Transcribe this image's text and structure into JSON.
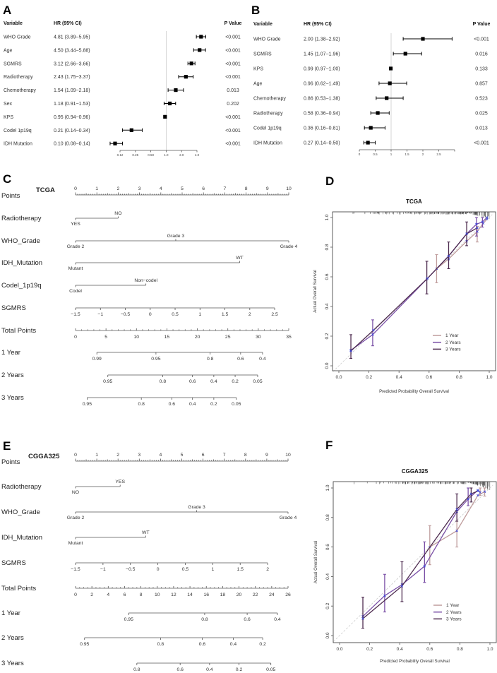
{
  "panels": {
    "A": "A",
    "B": "B",
    "C": "C",
    "D": "D",
    "E": "E",
    "F": "F"
  },
  "chart_data": [
    {
      "id": "A",
      "type": "forest",
      "scale": "log",
      "headers": {
        "variable": "Variable",
        "hr": "HR (95% CI)",
        "p": "P Value"
      },
      "ticks": [
        {
          "v": 0.125,
          "label": "0.12"
        },
        {
          "v": 0.25,
          "label": "0.25"
        },
        {
          "v": 0.5,
          "label": "0.50"
        },
        {
          "v": 1,
          "label": "1.0"
        },
        {
          "v": 2,
          "label": "2.0"
        },
        {
          "v": 4,
          "label": "4.0"
        }
      ],
      "rows": [
        {
          "variable": "WHO Grade",
          "hr": 4.81,
          "lo": 3.89,
          "hi": 5.95,
          "text": "4.81 (3.89−5.95)",
          "p": "<0.001"
        },
        {
          "variable": "Age",
          "hr": 4.5,
          "lo": 3.44,
          "hi": 5.88,
          "text": "4.50 (3.44−5.88)",
          "p": "<0.001"
        },
        {
          "variable": "SGMRS",
          "hr": 3.12,
          "lo": 2.66,
          "hi": 3.66,
          "text": "3.12 (2.66−3.66)",
          "p": "<0.001"
        },
        {
          "variable": "Radiotherapy",
          "hr": 2.43,
          "lo": 1.75,
          "hi": 3.37,
          "text": "2.43 (1.75−3.37)",
          "p": "<0.001"
        },
        {
          "variable": "Chemotherapy",
          "hr": 1.54,
          "lo": 1.09,
          "hi": 2.18,
          "text": "1.54 (1.09−2.18)",
          "p": "0.013"
        },
        {
          "variable": "Sex",
          "hr": 1.18,
          "lo": 0.91,
          "hi": 1.53,
          "text": "1.18 (0.91−1.53)",
          "p": "0.202"
        },
        {
          "variable": "KPS",
          "hr": 0.95,
          "lo": 0.94,
          "hi": 0.96,
          "text": "0.95 (0.94−0.96)",
          "p": "<0.001"
        },
        {
          "variable": "Codel 1p19q",
          "hr": 0.21,
          "lo": 0.14,
          "hi": 0.34,
          "text": "0.21 (0.14−0.34)",
          "p": "<0.001"
        },
        {
          "variable": "IDH Mutation",
          "hr": 0.1,
          "lo": 0.08,
          "hi": 0.14,
          "text": "0.10 (0.08−0.14)",
          "p": "<0.001"
        }
      ]
    },
    {
      "id": "B",
      "type": "forest",
      "scale": "linear",
      "xlim": [
        0,
        3
      ],
      "headers": {
        "variable": "Variable",
        "hr": "HR (95% CI)",
        "p": "P Value"
      },
      "ticks": [
        {
          "v": 0,
          "label": "0"
        },
        {
          "v": 0.5,
          "label": "0.5"
        },
        {
          "v": 1,
          "label": "1"
        },
        {
          "v": 1.5,
          "label": "1.5"
        },
        {
          "v": 2,
          "label": "2"
        },
        {
          "v": 2.5,
          "label": "2.5"
        },
        {
          "v": 3,
          "label": ""
        }
      ],
      "rows": [
        {
          "variable": "WHO Grade",
          "hr": 2.0,
          "lo": 1.38,
          "hi": 2.92,
          "text": "2.00 (1.38−2.92)",
          "p": "<0.001"
        },
        {
          "variable": "SGMRS",
          "hr": 1.45,
          "lo": 1.07,
          "hi": 1.96,
          "text": "1.45 (1.07−1.96)",
          "p": "0.016"
        },
        {
          "variable": "KPS",
          "hr": 0.99,
          "lo": 0.97,
          "hi": 1.0,
          "text": "0.99 (0.97−1.00)",
          "p": "0.133"
        },
        {
          "variable": "Age",
          "hr": 0.96,
          "lo": 0.62,
          "hi": 1.49,
          "text": "0.96 (0.62−1.49)",
          "p": "0.857"
        },
        {
          "variable": "Chemotherapy",
          "hr": 0.86,
          "lo": 0.53,
          "hi": 1.38,
          "text": "0.86 (0.53−1.38)",
          "p": "0.523"
        },
        {
          "variable": "Radiotherapy",
          "hr": 0.58,
          "lo": 0.36,
          "hi": 0.94,
          "text": "0.58 (0.36−0.94)",
          "p": "0.025"
        },
        {
          "variable": "Codel 1p19q",
          "hr": 0.36,
          "lo": 0.16,
          "hi": 0.81,
          "text": "0.36 (0.16−0.81)",
          "p": "0.013"
        },
        {
          "variable": "IDH Mutation",
          "hr": 0.27,
          "lo": 0.14,
          "hi": 0.5,
          "text": "0.27 (0.14−0.50)",
          "p": "<0.001"
        }
      ]
    },
    {
      "id": "C",
      "type": "nomogram",
      "title": "TCGA",
      "total_max": 35,
      "rows": [
        {
          "label": "Points",
          "kind": "points",
          "ticks": [
            0,
            1,
            2,
            3,
            4,
            5,
            6,
            7,
            8,
            9,
            10
          ]
        },
        {
          "label": "Radiotherapy",
          "kind": "categorical",
          "levels": [
            {
              "name": "YES",
              "points": 0
            },
            {
              "name": "NO",
              "points": 2.0
            }
          ]
        },
        {
          "label": "WHO_Grade",
          "kind": "categorical",
          "levels": [
            {
              "name": "Grade 2",
              "points": 0
            },
            {
              "name": "Grade 3",
              "points": 4.7
            },
            {
              "name": "Grade 4",
              "points": 10
            }
          ]
        },
        {
          "label": "IDH_Mutation",
          "kind": "categorical",
          "levels": [
            {
              "name": "Mutant",
              "points": 0
            },
            {
              "name": "WT",
              "points": 7.7
            }
          ]
        },
        {
          "label": "Codel_1p19q",
          "kind": "categorical",
          "levels": [
            {
              "name": "Codel",
              "points": 0
            },
            {
              "name": "Non−codel",
              "points": 3.3
            }
          ]
        },
        {
          "label": "SGMRS",
          "kind": "continuous",
          "range": [
            -1.5,
            2.5
          ],
          "points_range": [
            0,
            9.34
          ],
          "ticks": [
            {
              "v": -1.5,
              "label": "−1.5"
            },
            {
              "v": -1,
              "label": "−1"
            },
            {
              "v": -0.5,
              "label": "−0.5"
            },
            {
              "v": 0,
              "label": "0"
            },
            {
              "v": 0.5,
              "label": "0.5"
            },
            {
              "v": 1,
              "label": "1"
            },
            {
              "v": 1.5,
              "label": "1.5"
            },
            {
              "v": 2,
              "label": "2"
            },
            {
              "v": 2.5,
              "label": "2.5"
            }
          ]
        },
        {
          "label": "Total Points",
          "kind": "total",
          "step": 5,
          "minor": 1
        },
        {
          "label": "1 Year",
          "kind": "prob",
          "ticks": [
            {
              "label": "0.99",
              "total": 3.5
            },
            {
              "label": "0.95",
              "total": 13.2
            },
            {
              "label": "0.8",
              "total": 22.1
            },
            {
              "label": "0.6",
              "total": 27.1
            },
            {
              "label": "0.4",
              "total": 30.7
            }
          ]
        },
        {
          "label": "2 Years",
          "kind": "prob",
          "ticks": [
            {
              "label": "0.95",
              "total": 5.3
            },
            {
              "label": "0.8",
              "total": 14.3
            },
            {
              "label": "0.6",
              "total": 19.2
            },
            {
              "label": "0.4",
              "total": 22.7
            },
            {
              "label": "0.2",
              "total": 26.2
            },
            {
              "label": "0.05",
              "total": 29.9
            }
          ]
        },
        {
          "label": "3 Years",
          "kind": "prob",
          "ticks": [
            {
              "label": "0.95",
              "total": 1.9
            },
            {
              "label": "0.8",
              "total": 10.8
            },
            {
              "label": "0.6",
              "total": 15.8
            },
            {
              "label": "0.4",
              "total": 19.2
            },
            {
              "label": "0.2",
              "total": 22.7
            },
            {
              "label": "0.05",
              "total": 26.4
            }
          ]
        }
      ]
    },
    {
      "id": "D",
      "type": "line",
      "title": "TCGA",
      "xlabel": "Predicted Probability Overall Survival",
      "ylabel": "Actual Overall Survival",
      "xlim": [
        0,
        1
      ],
      "ylim": [
        0,
        1
      ],
      "xticks": [
        "0.0",
        "0.2",
        "0.4",
        "0.6",
        "0.8",
        "1.0"
      ],
      "yticks": [
        "0.0",
        "0.2",
        "0.4",
        "0.6",
        "0.8",
        "1.0"
      ],
      "legend_position": "bottom-right",
      "series": [
        {
          "name": "1 Year",
          "color": "#bf9c9c",
          "x": [
            0.65,
            0.73,
            0.85,
            0.92,
            0.96,
            0.985
          ],
          "y": [
            0.655,
            0.72,
            0.84,
            0.905,
            0.96,
            0.99
          ],
          "errors": [
            {
              "x": 0.65,
              "lo": 0.56,
              "hi": 0.75
            },
            {
              "x": 0.92,
              "lo": 0.835,
              "hi": 0.94
            }
          ]
        },
        {
          "name": "2 Years",
          "color": "#7a4fa6",
          "x": [
            0.08,
            0.225,
            0.585,
            0.73,
            0.85,
            0.915,
            0.955,
            0.985
          ],
          "y": [
            0.105,
            0.21,
            0.585,
            0.74,
            0.89,
            0.955,
            0.97,
            1.0
          ],
          "errors": [
            {
              "x": 0.225,
              "lo": 0.135,
              "hi": 0.31
            },
            {
              "x": 0.915,
              "lo": 0.875,
              "hi": 1.0
            },
            {
              "x": 0.955,
              "lo": 0.935,
              "hi": 1.0
            }
          ]
        },
        {
          "name": "3 Years",
          "color": "#4c2a4e",
          "x": [
            0.08,
            0.23,
            0.59,
            0.73,
            0.85,
            0.92
          ],
          "y": [
            0.1,
            0.24,
            0.59,
            0.74,
            0.89,
            0.93
          ],
          "errors": [
            {
              "x": 0.08,
              "lo": 0.05,
              "hi": 0.21
            },
            {
              "x": 0.585,
              "lo": 0.485,
              "hi": 0.705
            },
            {
              "x": 0.73,
              "lo": 0.655,
              "hi": 0.835
            },
            {
              "x": 0.85,
              "lo": 0.81,
              "hi": 0.97
            }
          ]
        }
      ]
    },
    {
      "id": "E",
      "type": "nomogram",
      "title": "CGGA325",
      "total_max": 26,
      "rows": [
        {
          "label": "Points",
          "kind": "points",
          "ticks": [
            0,
            1,
            2,
            3,
            4,
            5,
            6,
            7,
            8,
            9,
            10
          ]
        },
        {
          "label": "Radiotherapy",
          "kind": "categorical",
          "levels": [
            {
              "name": "NO",
              "points": 0
            },
            {
              "name": "YES",
              "points": 2.1
            }
          ]
        },
        {
          "label": "WHO_Grade",
          "kind": "categorical",
          "levels": [
            {
              "name": "Grade 2",
              "points": 0
            },
            {
              "name": "Grade 3",
              "points": 5.7
            },
            {
              "name": "Grade 4",
              "points": 10
            }
          ]
        },
        {
          "label": "IDH_Mutation",
          "kind": "categorical",
          "levels": [
            {
              "name": "Mutant",
              "points": 0
            },
            {
              "name": "WT",
              "points": 3.3
            }
          ]
        },
        {
          "label": "SGMRS",
          "kind": "continuous",
          "range": [
            -1.5,
            2
          ],
          "points_range": [
            0,
            9.04
          ],
          "ticks": [
            {
              "v": -1.5,
              "label": "−1.5"
            },
            {
              "v": -1,
              "label": "−1"
            },
            {
              "v": -0.5,
              "label": "−0.5"
            },
            {
              "v": 0,
              "label": "0"
            },
            {
              "v": 0.5,
              "label": "0.5"
            },
            {
              "v": 1,
              "label": "1"
            },
            {
              "v": 1.5,
              "label": "1.5"
            },
            {
              "v": 2,
              "label": "2"
            }
          ]
        },
        {
          "label": "Total Points",
          "kind": "total",
          "step": 2,
          "minor": 0.5
        },
        {
          "label": "1 Year",
          "kind": "prob",
          "ticks": [
            {
              "label": "0.95",
              "total": 6.5
            },
            {
              "label": "0.8",
              "total": 15.8
            },
            {
              "label": "0.6",
              "total": 21.0
            },
            {
              "label": "0.4",
              "total": 24.7
            }
          ]
        },
        {
          "label": "2 Years",
          "kind": "prob",
          "ticks": [
            {
              "label": "0.95",
              "total": 1.1
            },
            {
              "label": "0.8",
              "total": 10.4
            },
            {
              "label": "0.6",
              "total": 15.5
            },
            {
              "label": "0.4",
              "total": 19.3
            },
            {
              "label": "0.2",
              "total": 22.9
            }
          ]
        },
        {
          "label": "3 Years",
          "kind": "prob",
          "ticks": [
            {
              "label": "0.8",
              "total": 7.5
            },
            {
              "label": "0.6",
              "total": 12.8
            },
            {
              "label": "0.4",
              "total": 16.4
            },
            {
              "label": "0.2",
              "total": 20.0
            },
            {
              "label": "0.05",
              "total": 23.9
            }
          ]
        }
      ]
    },
    {
      "id": "F",
      "type": "line",
      "title": "CGGA325",
      "xlabel": "Predicted Probability Overall Survival",
      "ylabel": "Actual Overall Survival",
      "xlim": [
        0,
        1
      ],
      "ylim": [
        0,
        1
      ],
      "xticks": [
        "0.0",
        "0.2",
        "0.4",
        "0.6",
        "0.8",
        "1.0"
      ],
      "yticks": [
        "0.0",
        "0.2",
        "0.4",
        "0.6",
        "0.8",
        "1.0"
      ],
      "legend_position": "bottom-right",
      "series": [
        {
          "name": "1 Year",
          "color": "#bf9c9c",
          "x": [
            0.6,
            0.78,
            0.92,
            0.965
          ],
          "y": [
            0.6,
            0.71,
            0.95,
            0.975
          ],
          "errors": [
            {
              "x": 0.6,
              "lo": 0.48,
              "hi": 0.745
            },
            {
              "x": 0.78,
              "lo": 0.6,
              "hi": 0.85
            },
            {
              "x": 0.935,
              "lo": 0.95,
              "hi": 1.0
            },
            {
              "x": 0.965,
              "lo": 0.945,
              "hi": 1.0
            }
          ]
        },
        {
          "name": "2 Years",
          "color": "#7a4fa6",
          "x": [
            0.155,
            0.3,
            0.415,
            0.565,
            0.78,
            0.855,
            0.92,
            0.935
          ],
          "y": [
            0.13,
            0.27,
            0.345,
            0.47,
            0.84,
            0.925,
            0.985,
            0.97
          ],
          "errors": [
            {
              "x": 0.3,
              "lo": 0.16,
              "hi": 0.415
            },
            {
              "x": 0.565,
              "lo": 0.36,
              "hi": 0.635
            },
            {
              "x": 0.855,
              "lo": 0.88,
              "hi": 1.0
            }
          ]
        },
        {
          "name": "3 Years",
          "color": "#4c2a4e",
          "x": [
            0.155,
            0.415,
            0.78,
            0.875,
            0.92
          ],
          "y": [
            0.115,
            0.335,
            0.855,
            0.96,
            0.98
          ],
          "errors": [
            {
              "x": 0.155,
              "lo": 0.05,
              "hi": 0.26
            },
            {
              "x": 0.415,
              "lo": 0.23,
              "hi": 0.5
            },
            {
              "x": 0.78,
              "lo": 0.775,
              "hi": 0.96
            },
            {
              "x": 0.875,
              "lo": 0.905,
              "hi": 1.0
            }
          ]
        }
      ]
    }
  ]
}
